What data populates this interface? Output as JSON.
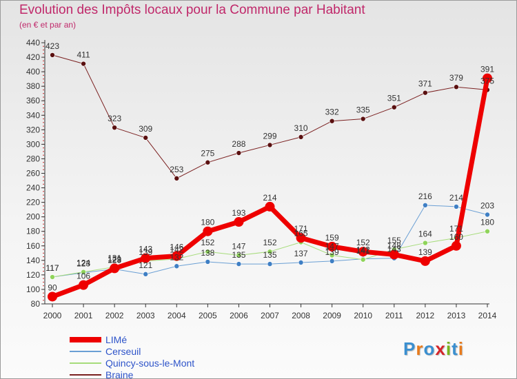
{
  "header": {
    "title": "Evolution des Impôts locaux pour la Commune par Habitant",
    "subtitle": "(en € et par an)"
  },
  "logo": {
    "text": "Proxiti",
    "colors": [
      "#3a8fd0",
      "#e87b1c",
      "#3a8fd0",
      "#d4252a",
      "#7ab51d",
      "#3a8fd0",
      "#e87b1c"
    ]
  },
  "colors": {
    "accent": "#c0286a",
    "label": "#2d53c9",
    "axis": "#333333"
  },
  "chart_data": {
    "type": "line",
    "title": "Evolution des Impôts locaux pour la Commune par Habitant",
    "subtitle": "(en € et par an)",
    "xlabel": "",
    "ylabel": "",
    "x": [
      "2000",
      "2001",
      "2002",
      "2003",
      "2004",
      "2005",
      "2006",
      "2007",
      "2008",
      "2009",
      "2010",
      "2011",
      "2012",
      "2013",
      "2014"
    ],
    "ylim": [
      80,
      440
    ],
    "yticks": [
      80,
      100,
      120,
      140,
      160,
      180,
      200,
      220,
      240,
      260,
      280,
      300,
      320,
      340,
      360,
      380,
      400,
      420,
      440
    ],
    "grid": false,
    "legend_position": "bottom-left",
    "series": [
      {
        "name": "Braine",
        "color": "#7a1f1f",
        "dot": "#5a1010",
        "width": 1,
        "radius": 3.5,
        "values": [
          423,
          411,
          323,
          309,
          253,
          275,
          288,
          299,
          310,
          332,
          335,
          351,
          371,
          379,
          375
        ]
      },
      {
        "name": "Cerseuil",
        "color": "#6a9fd4",
        "dot": "#3f7fc4",
        "width": 1,
        "radius": 3.5,
        "values": [
          117,
          123,
          128,
          121,
          132,
          138,
          135,
          135,
          137,
          139,
          142,
          143,
          216,
          214,
          203
        ]
      },
      {
        "name": "Quincy-sous-le-Mont",
        "color": "#a6dc7a",
        "dot": "#8fd45a",
        "width": 1,
        "radius": 3.5,
        "values": [
          117,
          124,
          131,
          139,
          142,
          152,
          147,
          152,
          165,
          147,
          141,
          155,
          164,
          171,
          180
        ]
      },
      {
        "name": "LIMé",
        "color": "#ee0000",
        "dot": "#ee0000",
        "width": 7,
        "radius": 7,
        "values": [
          90,
          106,
          129,
          143,
          146,
          180,
          193,
          214,
          171,
          159,
          152,
          148,
          139,
          160,
          391
        ]
      }
    ],
    "data_labels": [
      {
        "series": "LIMé",
        "values": [
          90,
          106,
          129,
          143,
          146,
          180,
          193,
          214,
          171,
          159,
          152,
          148,
          139,
          160,
          391
        ]
      },
      {
        "series": "Braine",
        "values": [
          423,
          411,
          323,
          309,
          253,
          275,
          288,
          299,
          310,
          332,
          335,
          351,
          371,
          379,
          375
        ]
      },
      {
        "series": "Cerseuil",
        "values": [
          117,
          123,
          128,
          121,
          132,
          138,
          135,
          135,
          137,
          139,
          142,
          143,
          216,
          214,
          203
        ]
      },
      {
        "series": "Quincy-sous-le-Mont",
        "values": [
          117,
          124,
          131,
          139,
          142,
          152,
          147,
          152,
          165,
          147,
          141,
          155,
          164,
          171,
          180
        ]
      }
    ]
  },
  "legend": [
    {
      "label": "LIMé",
      "color": "#ee0000",
      "thickness": 8
    },
    {
      "label": "Cerseuil",
      "color": "#6a9fd4",
      "thickness": 2
    },
    {
      "label": "Quincy-sous-le-Mont",
      "color": "#a6dc7a",
      "thickness": 2
    },
    {
      "label": "Braine",
      "color": "#7a1f1f",
      "thickness": 2
    }
  ]
}
